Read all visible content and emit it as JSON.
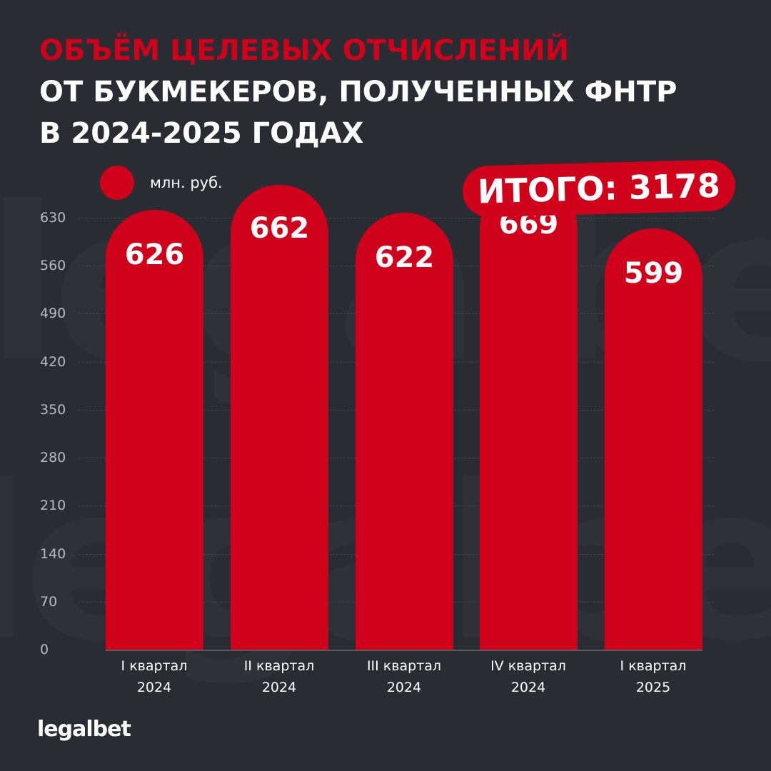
{
  "title": {
    "line1": "ОБЪЁМ ЦЕЛЕВЫХ ОТЧИСЛЕНИЙ",
    "line2": "ОТ БУКМЕКЕРОВ, ПОЛУЧЕННЫХ ФНТР",
    "line3": "В 2024-2025 ГОДАХ"
  },
  "legend": {
    "label": "млн. руб.",
    "color": "#d0021b"
  },
  "total_badge": "ИТОГО: 3178",
  "brand": "legalbet",
  "watermark": "legalbet",
  "colors": {
    "background": "#2a2c34",
    "accent": "#d0021b",
    "text": "#ffffff",
    "axis_text": "#b9bbc2"
  },
  "y_ticks": [
    "630",
    "560",
    "490",
    "420",
    "350",
    "280",
    "210",
    "140",
    "70",
    "0"
  ],
  "x_labels": [
    {
      "line1": "I квартал",
      "line2": "2024"
    },
    {
      "line1": "II квартал",
      "line2": "2024"
    },
    {
      "line1": "III квартал",
      "line2": "2024"
    },
    {
      "line1": "IV квартал",
      "line2": "2024"
    },
    {
      "line1": "I квартал",
      "line2": "2025"
    }
  ],
  "bars": [
    {
      "value": "626"
    },
    {
      "value": "662"
    },
    {
      "value": "622"
    },
    {
      "value": "669"
    },
    {
      "value": "599"
    }
  ],
  "chart_data": {
    "type": "bar",
    "title": "ОБЪЁМ ЦЕЛЕВЫХ ОТЧИСЛЕНИЙ ОТ БУКМЕКЕРОВ, ПОЛУЧЕННЫХ ФНТР В 2024-2025 ГОДАХ",
    "categories": [
      "I квартал 2024",
      "II квартал 2024",
      "III квартал 2024",
      "IV квартал 2024",
      "I квартал 2025"
    ],
    "series": [
      {
        "name": "млн. руб.",
        "values": [
          626,
          662,
          622,
          669,
          599
        ]
      }
    ],
    "values": [
      626,
      662,
      622,
      669,
      599
    ],
    "annotations": [
      "ИТОГО: 3178"
    ],
    "xlabel": "",
    "ylabel": "млн. руб.",
    "ylim": [
      0,
      630
    ],
    "yticks": [
      0,
      70,
      140,
      210,
      280,
      350,
      420,
      490,
      560,
      630
    ],
    "grid": true,
    "legend_position": "top-left",
    "data_labels": true
  }
}
